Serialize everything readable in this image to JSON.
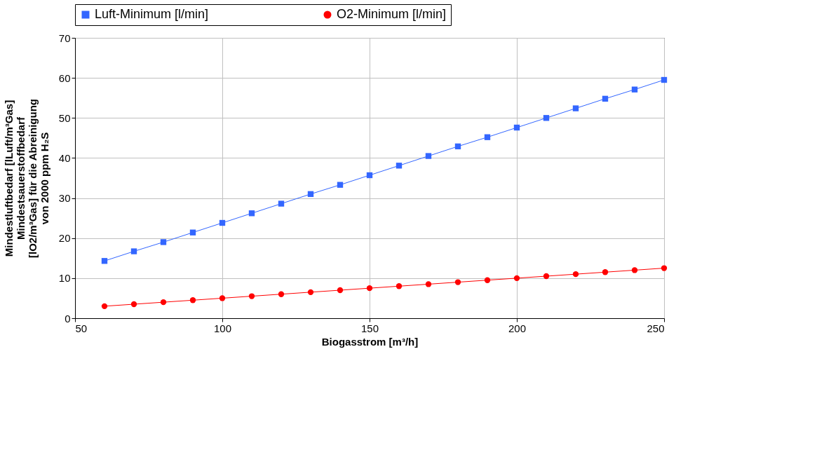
{
  "chart_data": {
    "type": "line",
    "xlabel": "Biogasstrom [m³/h]",
    "ylabel": [
      "Mindestluftbedarf [lLuft/m³Gas]",
      "Mindestsauerstoffbedarf",
      "[lO2/m³Gas] für die Abreinigung",
      "von 2000 ppm  H₂S"
    ],
    "x": [
      60,
      70,
      80,
      90,
      100,
      110,
      120,
      130,
      140,
      150,
      160,
      170,
      180,
      190,
      200,
      210,
      220,
      230,
      240,
      250
    ],
    "series": [
      {
        "name": "Luft-Minimum [l/min]",
        "color": "#3366ff",
        "marker": "square",
        "values": [
          14.3,
          16.7,
          19.0,
          21.4,
          23.8,
          26.2,
          28.6,
          31.0,
          33.3,
          35.7,
          38.1,
          40.5,
          42.9,
          45.2,
          47.6,
          50.0,
          52.4,
          54.8,
          57.1,
          59.5
        ]
      },
      {
        "name": "O2-Minimum [l/min]",
        "color": "#ff0000",
        "marker": "circle",
        "values": [
          3,
          3.5,
          4,
          4.5,
          5,
          5.5,
          6,
          6.5,
          7,
          7.5,
          8,
          8.5,
          9,
          9.5,
          10,
          10.5,
          11,
          11.5,
          12,
          12.5
        ]
      }
    ],
    "xlim": [
      50,
      250
    ],
    "xticks": [
      50,
      100,
      150,
      200,
      250
    ],
    "ylim": [
      0,
      70
    ],
    "yticks": [
      0,
      10,
      20,
      30,
      40,
      50,
      60,
      70
    ],
    "grid": true,
    "legend": "top",
    "line_style": "solid"
  }
}
